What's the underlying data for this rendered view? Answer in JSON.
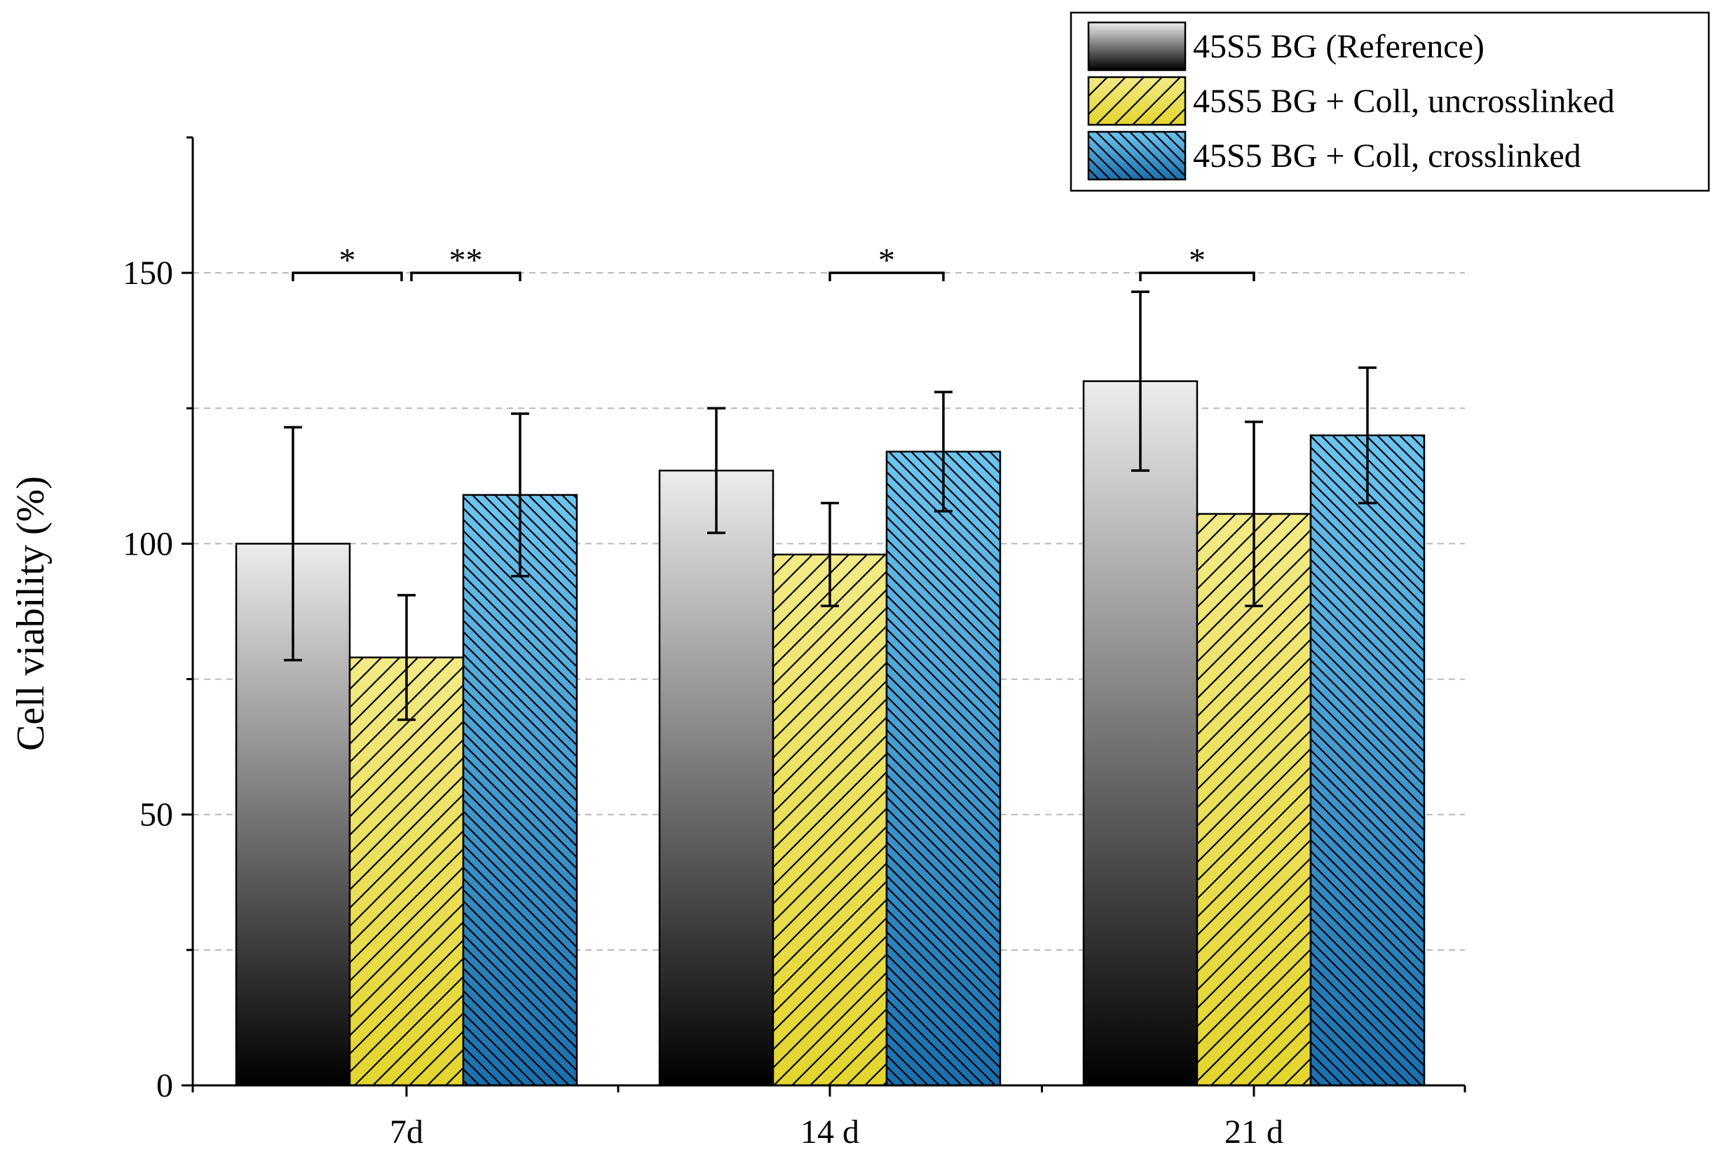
{
  "chart_data": {
    "type": "bar",
    "title": "",
    "xlabel": "",
    "ylabel": "Cell viability (%)",
    "ylim": [
      0,
      175
    ],
    "yticks": [
      0,
      50,
      100,
      150
    ],
    "gridlines_at": [
      25,
      50,
      75,
      100,
      125,
      150
    ],
    "grid": true,
    "legend_position": "top-right",
    "categories": [
      "7d",
      "14 d",
      "21 d"
    ],
    "series": [
      {
        "name": "45S5 BG (Reference)",
        "pattern": "gradient",
        "color_top": "#ececec",
        "color_bottom": "#000000",
        "values": [
          100,
          113.5,
          130
        ],
        "errors": [
          21.5,
          11.5,
          16.5
        ]
      },
      {
        "name": "45S5 BG + Coll, uncrosslinked",
        "pattern": "hatch-forward",
        "color_top": "#f2ea86",
        "color_bottom": "#e3d52e",
        "values": [
          79,
          98,
          105.5
        ],
        "errors": [
          11.5,
          9.5,
          17
        ]
      },
      {
        "name": "45S5 BG + Coll, crosslinked",
        "pattern": "hatch-backward",
        "color_top": "#6cc4f0",
        "color_bottom": "#1a6fae",
        "values": [
          109,
          117,
          120
        ],
        "errors": [
          15,
          11,
          12.5
        ]
      }
    ],
    "significance": [
      {
        "category": "7d",
        "from_series": 0,
        "to_series": 1,
        "label": "*"
      },
      {
        "category": "7d",
        "from_series": 1,
        "to_series": 2,
        "label": "**"
      },
      {
        "category": "14 d",
        "from_series": 1,
        "to_series": 2,
        "label": "*"
      },
      {
        "category": "21 d",
        "from_series": 0,
        "to_series": 1,
        "label": "*"
      }
    ]
  }
}
